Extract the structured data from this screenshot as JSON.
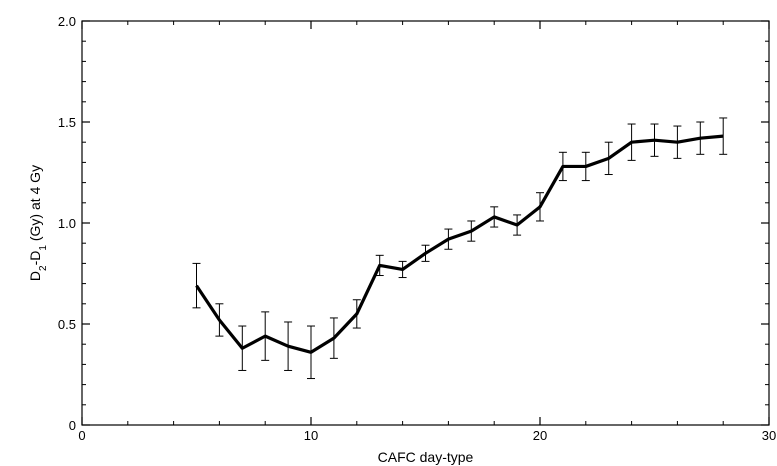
{
  "chart_data": {
    "type": "line",
    "xlabel": "CAFC day-type",
    "ylabel": {
      "parts": [
        {
          "text": "D",
          "sub": false
        },
        {
          "text": "2",
          "sub": true
        },
        {
          "text": "-D",
          "sub": false
        },
        {
          "text": "1",
          "sub": true
        },
        {
          "text": " (Gy) at 4 Gy",
          "sub": false
        }
      ]
    },
    "xlim": [
      0,
      30
    ],
    "ylim": [
      0,
      2.0
    ],
    "xticks": [
      0,
      10,
      20,
      30
    ],
    "xtick_labels": [
      "0",
      "10",
      "20",
      "30"
    ],
    "yticks": [
      0,
      0.5,
      1.0,
      1.5,
      2.0
    ],
    "ytick_labels": [
      "0",
      "0.5",
      "1.0",
      "1.5",
      "2.0"
    ],
    "x_minor_step": 2,
    "y_minor_step": 0.1,
    "grid": false,
    "series": [
      {
        "x": [
          5,
          6,
          7,
          8,
          9,
          10,
          11,
          12,
          13,
          14,
          15,
          16,
          17,
          18,
          19,
          20,
          21,
          22,
          23,
          24,
          25,
          26,
          27,
          28
        ],
        "y": [
          0.69,
          0.52,
          0.38,
          0.44,
          0.39,
          0.36,
          0.43,
          0.55,
          0.79,
          0.77,
          0.85,
          0.92,
          0.96,
          1.03,
          0.99,
          1.08,
          1.28,
          1.28,
          1.32,
          1.4,
          1.41,
          1.4,
          1.42,
          1.43
        ],
        "err": [
          0.11,
          0.08,
          0.11,
          0.12,
          0.12,
          0.13,
          0.1,
          0.07,
          0.05,
          0.04,
          0.04,
          0.05,
          0.05,
          0.05,
          0.05,
          0.07,
          0.07,
          0.07,
          0.08,
          0.09,
          0.08,
          0.08,
          0.08,
          0.09
        ]
      }
    ]
  }
}
